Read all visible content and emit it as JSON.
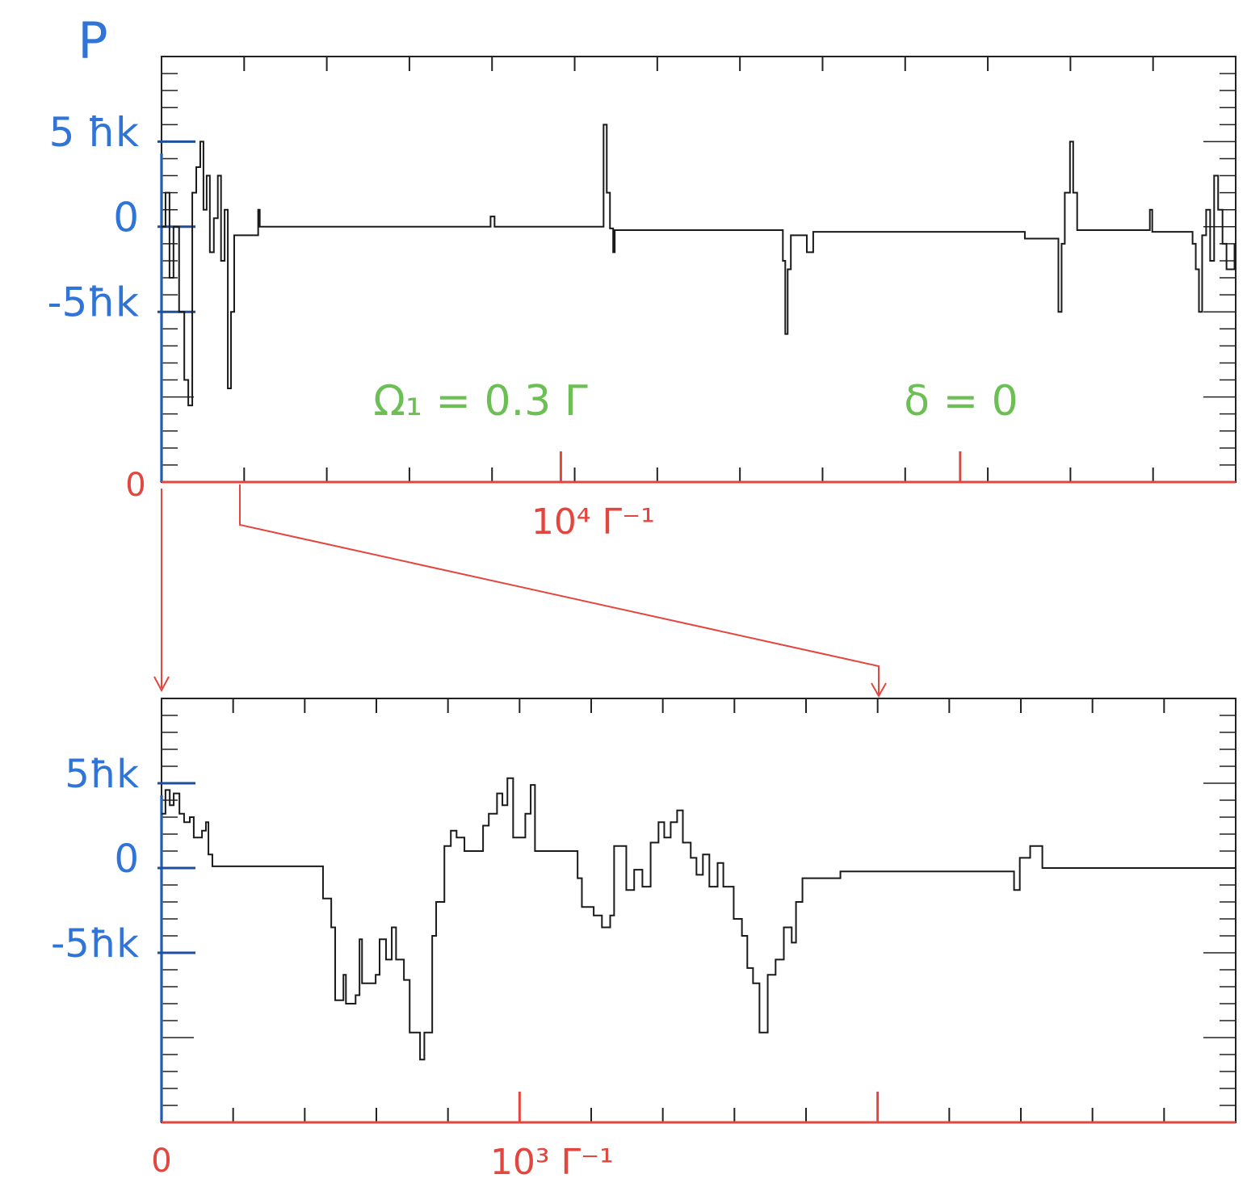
{
  "chart_data": [
    {
      "type": "line",
      "step": "post",
      "ylabel": "P",
      "x": [
        0,
        100,
        200,
        300,
        440,
        570,
        670,
        770,
        870,
        970,
        1050,
        1130,
        1210,
        1310,
        1410,
        1490,
        1580,
        1660,
        1740,
        1820,
        2420,
        2460,
        8240,
        8340,
        11070,
        11150,
        11230,
        11310,
        11350,
        15560,
        15620,
        15680,
        15760,
        16160,
        16320,
        21620,
        22460,
        22540,
        22620,
        22750,
        22830,
        22930,
        24750,
        24810,
        25820,
        25900,
        25980,
        26060,
        26160,
        26260,
        26360,
        26460,
        26570,
        26670,
        26870
      ],
      "series": [
        {
          "color": "#1a1a1a",
          "values": [
            0,
            2,
            -3,
            0,
            -5,
            -9,
            -10.5,
            2,
            3.5,
            5,
            1,
            3,
            -1.5,
            0.5,
            3,
            -2,
            1,
            -9.5,
            -5,
            -0.5,
            1,
            0,
            0.6,
            0,
            6,
            2,
            -0.1,
            -1.5,
            -0.2,
            -2,
            -6.3,
            -2.5,
            -0.5,
            -1.5,
            -0.3,
            -0.7,
            -5,
            -1,
            2,
            5,
            2,
            -0.2,
            1,
            -0.3,
            -1,
            -2.5,
            -5,
            -0.5,
            1,
            -2,
            3,
            1,
            -1,
            -2.5,
            -1
          ]
        }
      ],
      "xlim": [
        0,
        26900
      ],
      "ylim": [
        -15,
        10
      ],
      "xticks": [
        0,
        {
          "value": 10000,
          "label": "10⁴ Γ⁻¹"
        },
        {
          "value": 20000,
          "label": null
        }
      ],
      "yticks": [
        {
          "value": 5,
          "label": "5 ħk"
        },
        0,
        {
          "value": -5,
          "label": "-5ħk"
        }
      ],
      "annotations": [
        "Ω₁ = 0.3 Γ",
        "δ = 0"
      ],
      "x_axis_color": "#e2463e",
      "y_axis_color": "#2f74d6",
      "annotation_color": "#6cbf55"
    },
    {
      "type": "line",
      "step": "post",
      "x": [
        0,
        11,
        23,
        34,
        50,
        63,
        79,
        90,
        113,
        124,
        131,
        142,
        451,
        474,
        485,
        508,
        515,
        542,
        553,
        560,
        598,
        609,
        627,
        643,
        655,
        677,
        693,
        722,
        734,
        756,
        767,
        790,
        808,
        824,
        846,
        898,
        914,
        937,
        952,
        966,
        982,
        1004,
        1016,
        1031,
        1043,
        1162,
        1174,
        1207,
        1230,
        1253,
        1264,
        1298,
        1320,
        1343,
        1366,
        1388,
        1404,
        1422,
        1440,
        1456,
        1478,
        1494,
        1512,
        1530,
        1553,
        1569,
        1598,
        1621,
        1636,
        1652,
        1670,
        1693,
        1715,
        1738,
        1760,
        1772,
        1790,
        1896,
        2381,
        2397,
        2426,
        2460,
        3000
      ],
      "series": [
        {
          "color": "#1a1a1a",
          "values": [
            3.2,
            4.6,
            3.7,
            4.4,
            3.2,
            2.7,
            3,
            1.8,
            2.2,
            2.7,
            0.8,
            0.1,
            -1.8,
            -3.5,
            -7.8,
            -6.3,
            -8,
            -7.5,
            -4.2,
            -6.8,
            -6.3,
            -4.2,
            -5.4,
            -3.5,
            -5.4,
            -6.6,
            -9.7,
            -11.3,
            -9.7,
            -4,
            -2,
            1.3,
            2.2,
            1.8,
            1,
            2.5,
            3.2,
            4.4,
            3.7,
            5.3,
            1.8,
            1.8,
            3.2,
            4.9,
            1,
            -0.6,
            -2.3,
            -2.8,
            -3.5,
            -2.8,
            1.3,
            -1.3,
            -0.1,
            -1.1,
            1.5,
            2.7,
            1.8,
            2.7,
            3.4,
            1.5,
            0.6,
            -0.4,
            0.8,
            -1.1,
            0.3,
            -1.1,
            -3,
            -4,
            -5.9,
            -6.8,
            -9.7,
            -6.3,
            -5.4,
            -3.5,
            -4.4,
            -2,
            -0.6,
            -0.2,
            -1.3,
            0.6,
            1.3,
            0,
            0
          ]
        }
      ],
      "xlim": [
        0,
        3000
      ],
      "ylim": [
        -15,
        10
      ],
      "xticks": [
        0,
        {
          "value": 1000,
          "label": "10³ Γ⁻¹"
        },
        {
          "value": 2000,
          "label": null
        }
      ],
      "yticks": [
        {
          "value": 5,
          "label": "5ħk"
        },
        0,
        {
          "value": -5,
          "label": "-5ħk"
        }
      ],
      "x_axis_color": "#e2463e",
      "y_axis_color": "#2f74d6"
    }
  ]
}
